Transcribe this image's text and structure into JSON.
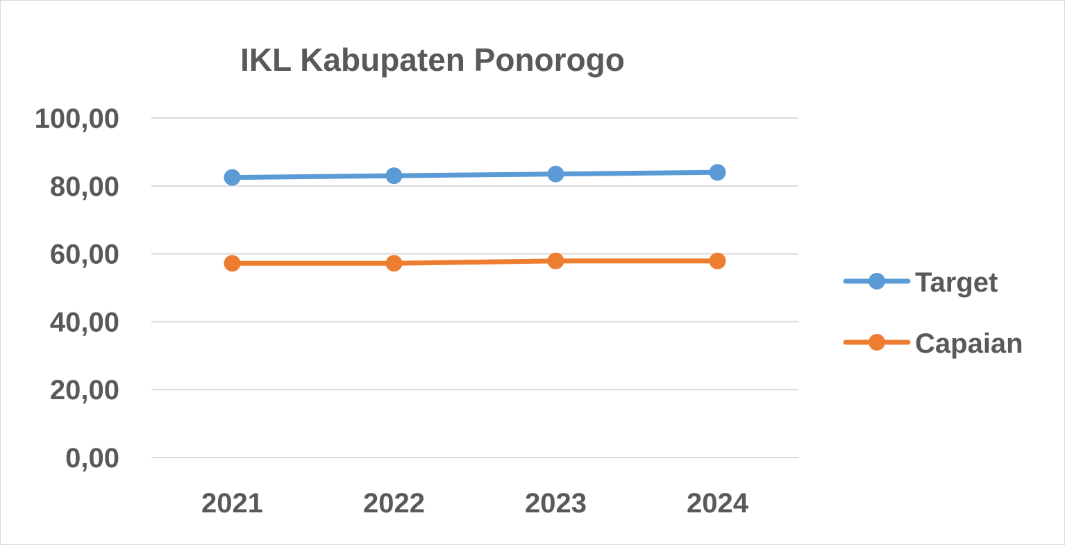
{
  "chart_data": {
    "type": "line",
    "title": "IKL Kabupaten Ponorogo",
    "xlabel": "",
    "ylabel": "",
    "categories": [
      "2021",
      "2022",
      "2023",
      "2024"
    ],
    "y_ticks": [
      "0,00",
      "20,00",
      "40,00",
      "60,00",
      "80,00",
      "100,00"
    ],
    "ylim": [
      0,
      100
    ],
    "grid": true,
    "legend_position": "right",
    "series": [
      {
        "name": "Target",
        "color": "#5b9bd5",
        "values": [
          82.5,
          83.0,
          83.5,
          84.0
        ]
      },
      {
        "name": "Capaian",
        "color": "#ed7d31",
        "values": [
          57.2,
          57.2,
          57.9,
          57.9
        ]
      }
    ]
  }
}
